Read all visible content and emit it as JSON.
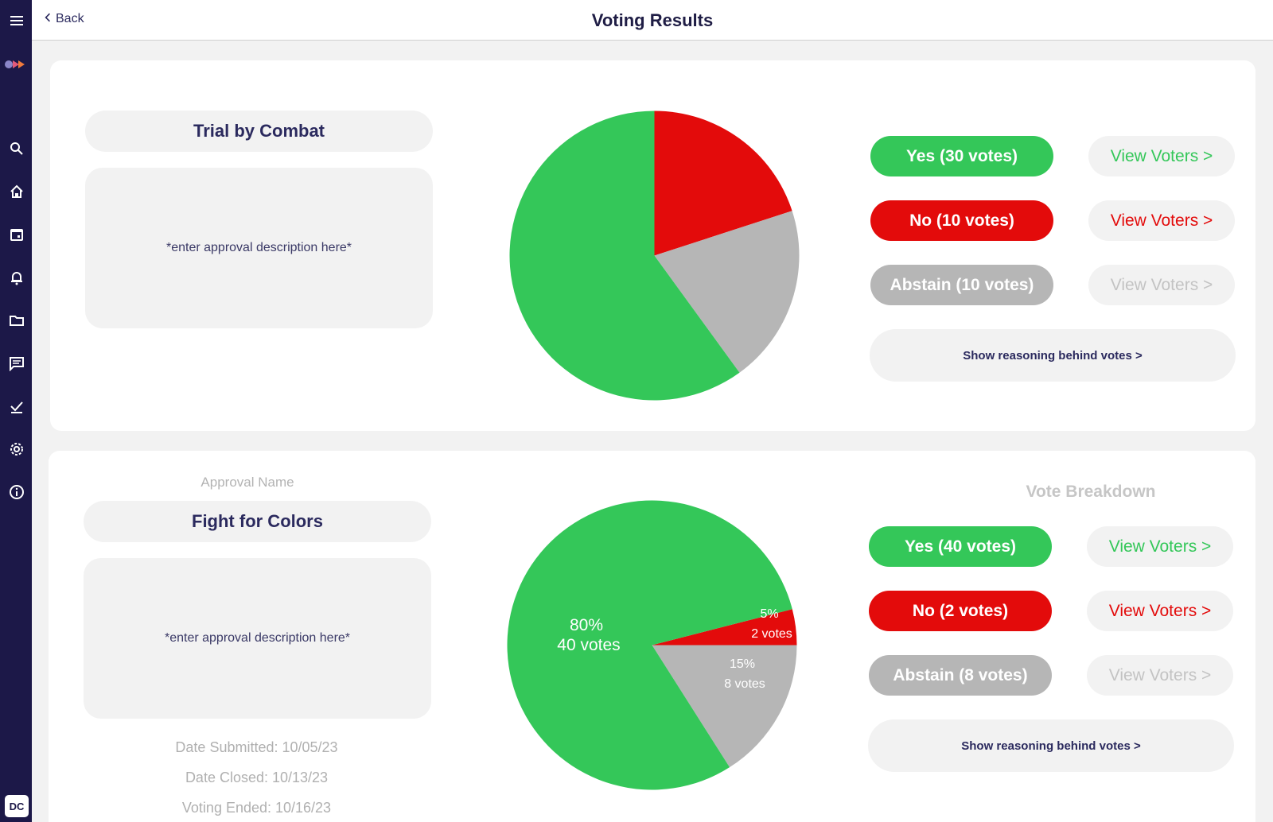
{
  "header": {
    "back_label": "Back",
    "title": "Voting Results"
  },
  "sidebar": {
    "icons": [
      "menu-icon",
      "logo-icon",
      "search-icon",
      "home-icon",
      "calendar-icon",
      "bell-icon",
      "folder-icon",
      "chat-icon",
      "check-icon",
      "gear-icon",
      "info-icon"
    ],
    "avatar": "DC"
  },
  "colors": {
    "yes": "#34c759",
    "no": "#e30b0b",
    "abstain": "#b6b6b6",
    "sidebar": "#1c1848"
  },
  "card1": {
    "name": "Trial by Combat",
    "description": "*enter approval description here*",
    "yes_label": "Yes (30 votes)",
    "no_label": "No (10 votes)",
    "abstain_label": "Abstain (10 votes)",
    "view_voters": "View Voters >",
    "reasoning": "Show reasoning behind votes >"
  },
  "card2": {
    "approval_name_label": "Approval Name",
    "vote_breakdown_label": "Vote Breakdown",
    "name": "Fight for Colors",
    "description": "*enter approval description here*",
    "date_submitted": "Date Submitted:  10/05/23",
    "date_closed": "Date Closed:  10/13/23",
    "voting_ended": "Voting Ended:  10/16/23",
    "yes_label": "Yes (40 votes)",
    "no_label": "No (2 votes)",
    "abstain_label": "Abstain (8 votes)",
    "view_voters": "View Voters >",
    "reasoning": "Show reasoning behind votes >",
    "pie_labels": {
      "yes_pct": "80%",
      "yes_votes": "40 votes",
      "no_pct": "5%",
      "no_votes": "2 votes",
      "abstain_pct": "15%",
      "abstain_votes": "8 votes"
    }
  },
  "chart_data": [
    {
      "type": "pie",
      "title": "",
      "categories": [
        "Yes",
        "No",
        "Abstain"
      ],
      "values": [
        30,
        10,
        10
      ]
    },
    {
      "type": "pie",
      "title": "",
      "categories": [
        "Yes",
        "No",
        "Abstain"
      ],
      "values": [
        40,
        2,
        8
      ],
      "labels": [
        "80% 40 votes",
        "5% 2 votes",
        "15% 8 votes"
      ]
    }
  ]
}
